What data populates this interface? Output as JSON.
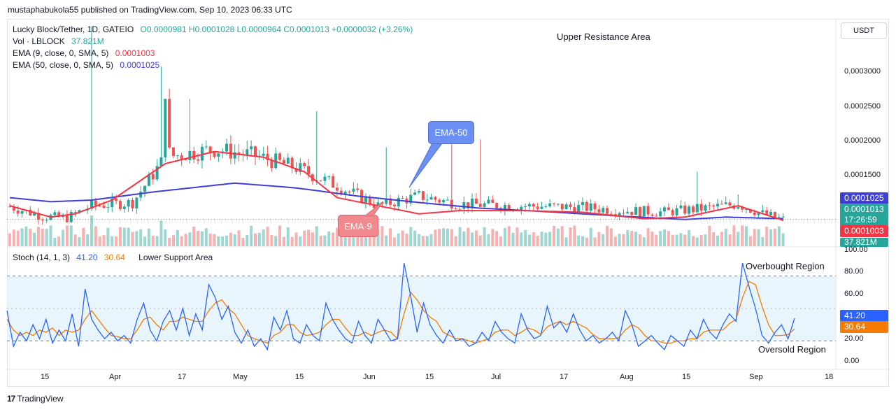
{
  "header": {
    "published": "mustaphabukola55 published on TradingView.com, Sep 10, 2023 06:33 UTC",
    "currency_button": "USDT",
    "footer_logo": "TradingView"
  },
  "legend": {
    "symbol": "Lucky Block/Tether, 1D, GATEIO",
    "ohlc": "O0.0000981  H0.0001028  L0.0000964  C0.0001013  +0.0000032 (+3.26%)",
    "vol_label": "Vol · LBLOCK",
    "vol_value": "37.821M",
    "ema9_label": "EMA (9, close, 0, SMA, 5)",
    "ema9_value": "0.0001003",
    "ema50_label": "EMA (50, close, 0, SMA, 5)",
    "ema50_value": "0.0001025",
    "stoch_label": "Stoch (14, 1, 3)",
    "stoch_k": "41.20",
    "stoch_d": "30.64"
  },
  "annotations": {
    "upper": "Upper Resistance Area",
    "lower": "Lower Support Area",
    "ema50_callout": "EMA-50",
    "ema9_callout": "EMA-9",
    "overbought": "Overbought Region",
    "oversold": "Oversold Region"
  },
  "price_tags": {
    "ema50": "0.0001025",
    "close": "0.0001013",
    "countdown": "17:26:59",
    "ema9": "0.0001003",
    "volume": "37.821M",
    "stoch_k": "41.20",
    "stoch_d": "30.64"
  },
  "colors": {
    "up": "#26a69a",
    "down": "#ef5350",
    "ema9": "#f23645",
    "ema50": "#3f3fd8",
    "stoch_k": "#2962ff",
    "stoch_d": "#f57c00",
    "stoch_band": "#e3f2fd"
  },
  "chart_data": [
    {
      "type": "candlestick",
      "y_axis_labels": [
        "0.0003000",
        "0.0002500",
        "0.0002000",
        "0.0001500"
      ],
      "y_ticks": [
        0.0003,
        0.00025,
        0.0002,
        0.00015
      ],
      "ylim": [
        6.8e-05,
        0.000348
      ],
      "x_labels": [
        "15",
        "Apr",
        "17",
        "May",
        "15",
        "Jun",
        "15",
        "Jul",
        "17",
        "Aug",
        "15",
        "Sep",
        "18"
      ],
      "x_label_days": [
        0,
        16.5,
        33,
        46.5,
        61.5,
        77.5,
        92,
        108,
        125,
        141,
        156,
        173,
        188
      ],
      "close": [
        9.8e-05,
        9.85e-05,
        9.5e-05,
        9.2e-05,
        9e-05,
        9.3e-05,
        9.6e-05,
        9.42e-05,
        9.9e-05,
        9.9e-05,
        0.0001004,
        9.57e-05,
        9.7e-05,
        9.68e-05,
        0.0001004,
        0.0001015,
        9.96e-05,
        0.0001012,
        9.98e-05,
        9.93e-05,
        0.0001032,
        0.0001008,
        0.0001005,
        0.0001005,
        9.99e-05,
        0.0001034,
        0.0001031,
        0.0001021,
        0.0001043,
        0.0001013
      ],
      "ema9": [
        9.9e-05,
        9.95e-05,
        9.85e-05,
        9.6e-05,
        9.35e-05,
        9.35e-05,
        9.45e-05,
        9.65e-05,
        9.75e-05,
        9.85e-05,
        9.92e-05,
        9.88e-05,
        9.82e-05,
        9.8e-05,
        9.9e-05,
        0.0001,
        0.0001003,
        0.0001007,
        0.0001005,
        0.0001002,
        0.000101,
        0.0001012,
        0.0001008,
        0.0001006,
        0.0001003,
        0.0001012,
        0.0001018,
        0.0001015,
        0.000101,
        0.0001003
      ],
      "ema50": [
        0.0001025,
        0.0001024,
        0.0001022,
        0.000102,
        0.0001018,
        0.0001015,
        0.0001013,
        0.0001012,
        0.0001012,
        0.0001012,
        0.0001013,
        0.0001014,
        0.0001015,
        0.0001015,
        0.0001016,
        0.0001017,
        0.0001018,
        0.0001019,
        0.000102,
        0.000102,
        0.0001021,
        0.0001022,
        0.0001022,
        0.0001022,
        0.0001023,
        0.0001024,
        0.0001025,
        0.0001025,
        0.0001025,
        0.0001025
      ]
    },
    {
      "type": "line",
      "title": "Stoch (14, 1, 3)",
      "y_axis_labels": [
        "100.00",
        "80.00",
        "60.00",
        "40.00",
        "20.00",
        "0.00"
      ],
      "y_ticks": [
        100,
        80,
        60,
        40,
        20,
        0
      ],
      "ylim": [
        -5,
        105
      ],
      "band": [
        20,
        80
      ],
      "series": [
        {
          "name": "%K",
          "values": [
            48,
            15,
            28,
            20,
            35,
            22,
            40,
            18,
            30,
            20,
            45,
            15,
            68,
            40,
            30,
            22,
            28,
            20,
            25,
            18,
            40,
            55,
            30,
            20,
            38,
            48,
            30,
            50,
            25,
            45,
            30,
            72,
            60,
            40,
            52,
            28,
            18,
            30,
            15,
            22,
            12,
            42,
            30,
            48,
            22,
            18,
            35,
            25,
            20,
            55,
            40,
            30,
            22,
            18,
            38,
            25,
            18,
            40,
            30,
            20,
            22,
            92,
            62,
            28,
            55,
            35,
            25,
            18,
            30,
            20,
            22,
            15,
            18,
            28,
            20,
            38,
            28,
            22,
            18,
            45,
            30,
            22,
            25,
            52,
            32,
            38,
            28,
            45,
            30,
            20,
            25,
            18,
            22,
            28,
            20,
            48,
            35,
            15,
            20,
            25,
            18,
            12,
            25,
            20,
            15,
            30,
            22,
            40,
            28,
            22,
            35,
            45,
            38,
            92,
            70,
            50,
            25,
            18,
            28,
            35,
            22,
            41
          ]
        },
        {
          "name": "%D",
          "values": [
            40,
            30,
            25,
            28,
            25,
            30,
            28,
            32,
            25,
            30,
            28,
            30,
            40,
            48,
            40,
            32,
            25,
            24,
            22,
            22,
            30,
            40,
            42,
            35,
            30,
            38,
            38,
            42,
            40,
            38,
            38,
            48,
            55,
            58,
            50,
            45,
            35,
            25,
            22,
            20,
            18,
            25,
            28,
            35,
            35,
            28,
            25,
            26,
            28,
            35,
            40,
            40,
            32,
            25,
            25,
            28,
            25,
            28,
            30,
            28,
            22,
            45,
            65,
            58,
            48,
            42,
            38,
            28,
            25,
            22,
            22,
            20,
            18,
            20,
            22,
            28,
            30,
            30,
            25,
            28,
            32,
            30,
            26,
            33,
            36,
            38,
            35,
            38,
            35,
            32,
            26,
            22,
            22,
            22,
            23,
            30,
            35,
            32,
            25,
            20,
            20,
            18,
            18,
            20,
            20,
            22,
            22,
            28,
            30,
            30,
            30,
            36,
            40,
            60,
            75,
            72,
            52,
            35,
            25,
            25,
            26,
            31
          ]
        }
      ]
    }
  ]
}
